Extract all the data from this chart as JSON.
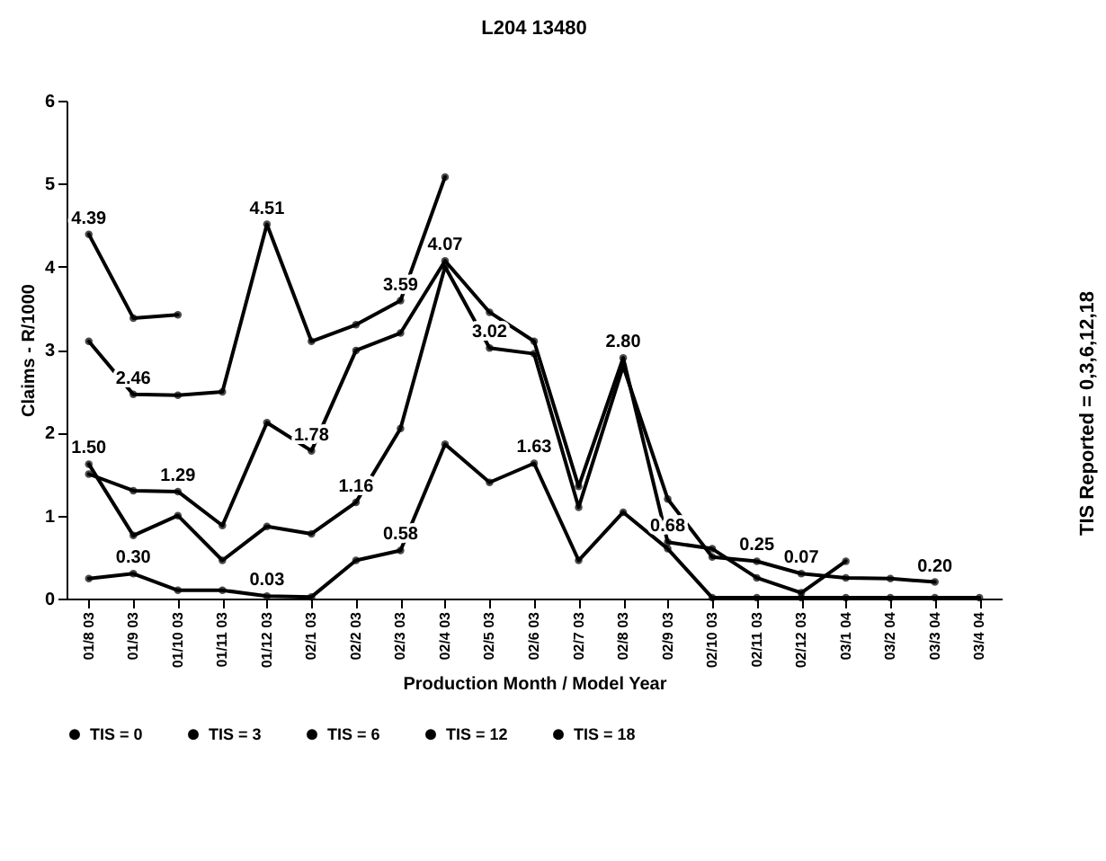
{
  "chart_data": {
    "type": "line",
    "title": "L204 13480",
    "xlabel": "Production Month / Model Year",
    "ylabel": "Claims - R/1000",
    "annotations": [
      "TIS Reported = 0,3,6,12,18"
    ],
    "categories": [
      "01/8 03",
      "01/9 03",
      "01/10 03",
      "01/11 03",
      "01/12 03",
      "02/1 03",
      "02/2 03",
      "02/3 03",
      "02/4 03",
      "02/5 03",
      "02/6 03",
      "02/7 03",
      "02/8 03",
      "02/9 03",
      "02/10 03",
      "02/11 03",
      "02/12 03",
      "03/1 04",
      "03/2 04",
      "03/3 04",
      "03/4 04"
    ],
    "series": [
      {
        "name": "TIS = 0",
        "color": "#000000",
        "values": [
          0.24,
          0.3,
          0.1,
          0.1,
          0.03,
          0.02,
          0.46,
          0.58,
          1.86,
          1.4,
          1.63,
          0.46,
          1.04,
          0.6,
          0.01,
          0.01,
          0.01,
          0.01,
          0.01,
          0.01,
          0.01
        ],
        "value_labels": [
          null,
          "0.30",
          null,
          null,
          "0.03",
          null,
          null,
          "0.58",
          null,
          null,
          "1.63",
          null,
          null,
          null,
          null,
          null,
          null,
          null,
          null,
          null,
          null
        ]
      },
      {
        "name": "TIS = 3",
        "color": "#000000",
        "values": [
          1.62,
          0.76,
          1.0,
          0.46,
          0.87,
          0.78,
          1.16,
          2.05,
          4.0,
          3.02,
          2.95,
          1.1,
          2.8,
          1.2,
          0.5,
          0.45,
          0.3,
          0.25,
          0.24,
          0.2,
          null
        ],
        "value_labels": [
          null,
          null,
          null,
          null,
          null,
          null,
          "1.16",
          null,
          null,
          "3.02",
          null,
          null,
          "2.80",
          null,
          null,
          null,
          null,
          null,
          null,
          "0.20",
          null
        ]
      },
      {
        "name": "TIS = 6",
        "color": "#000000",
        "values": [
          1.5,
          1.3,
          1.29,
          0.88,
          2.12,
          1.78,
          2.99,
          3.2,
          4.07,
          3.45,
          3.1,
          1.35,
          2.9,
          0.68,
          0.6,
          0.25,
          0.07,
          0.45,
          null,
          null,
          null
        ],
        "value_labels": [
          "1.50",
          null,
          "1.29",
          null,
          null,
          "1.78",
          null,
          null,
          "4.07",
          null,
          null,
          null,
          null,
          "0.68",
          null,
          "0.25",
          "0.07",
          null,
          null,
          null,
          null
        ]
      },
      {
        "name": "TIS = 12",
        "color": "#000000",
        "values": [
          3.1,
          2.46,
          2.45,
          2.49,
          4.51,
          3.1,
          3.3,
          3.59,
          5.08,
          null,
          null,
          null,
          null,
          null,
          null,
          null,
          null,
          null,
          null,
          null,
          null
        ],
        "value_labels": [
          null,
          "2.46",
          null,
          null,
          "4.51",
          null,
          null,
          "3.59",
          null,
          null,
          null,
          null,
          null,
          null,
          null,
          null,
          null,
          null,
          null,
          null,
          null
        ]
      },
      {
        "name": "TIS = 18",
        "color": "#000000",
        "values": [
          4.39,
          3.38,
          3.42,
          null,
          null,
          null,
          null,
          null,
          null,
          null,
          null,
          null,
          null,
          null,
          null,
          null,
          null,
          null,
          null,
          null,
          null
        ],
        "value_labels": [
          "4.39",
          null,
          null,
          null,
          null,
          null,
          null,
          null,
          null,
          null,
          null,
          null,
          null,
          null,
          null,
          null,
          null,
          null,
          null,
          null,
          null
        ]
      }
    ],
    "ylim": [
      0,
      6
    ],
    "yticks": [
      0,
      1,
      2,
      3,
      4,
      5,
      6
    ],
    "grid": false,
    "legend": "bottom",
    "marker": "circle",
    "line_style": "solid"
  }
}
